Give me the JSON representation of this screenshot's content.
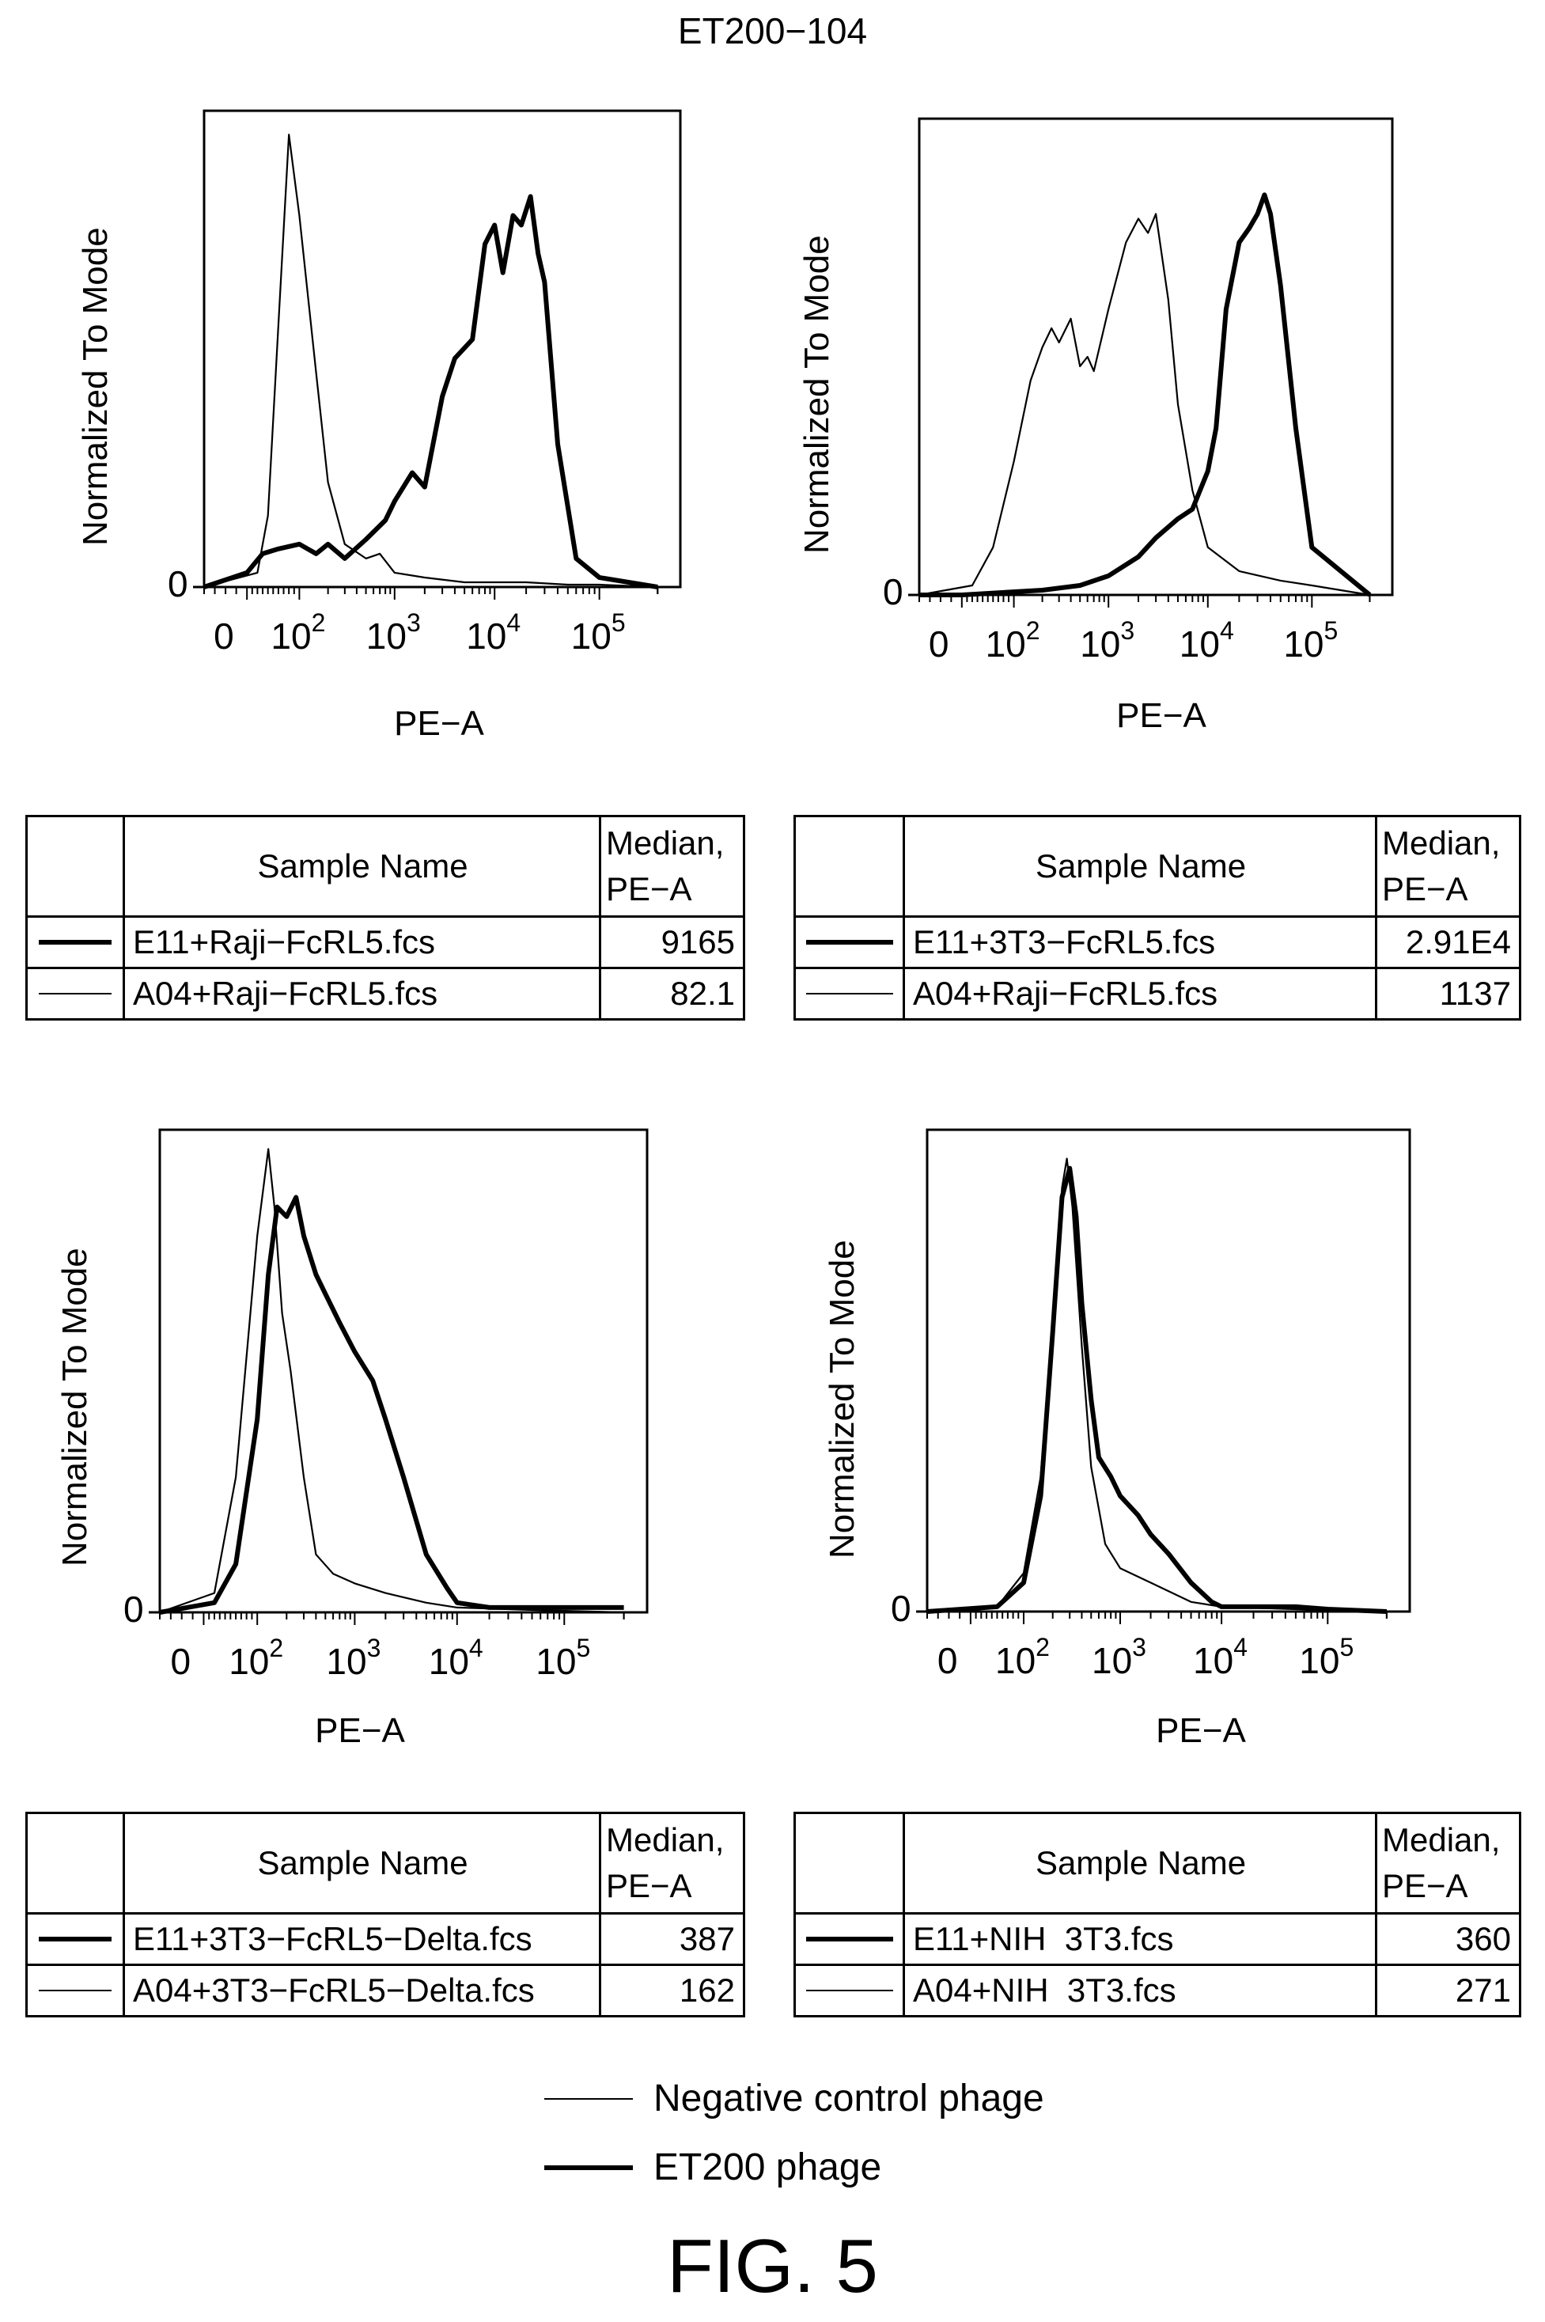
{
  "figure": {
    "title": "ET200−104",
    "caption": "FIG. 5"
  },
  "legend": {
    "thin_label": "Negative control phage",
    "thick_label": "ET200 phage"
  },
  "panels": [
    {
      "ylabel": "Normalized To Mode",
      "xlabel": "PE−A",
      "table": {
        "col_name": "Sample Name",
        "col_median_1": "Median,",
        "col_median_2": "PE−A",
        "rows": [
          {
            "line": "thick",
            "name": "E11+Raji−FcRL5.fcs",
            "median": "9165"
          },
          {
            "line": "thin",
            "name": "A04+Raji−FcRL5.fcs",
            "median": "82.1"
          }
        ]
      }
    },
    {
      "ylabel": "Normalized To Mode",
      "xlabel": "PE−A",
      "table": {
        "col_name": "Sample Name",
        "col_median_1": "Median,",
        "col_median_2": "PE−A",
        "rows": [
          {
            "line": "thick",
            "name": "E11+3T3−FcRL5.fcs",
            "median": "2.91E4"
          },
          {
            "line": "thin",
            "name": "A04+Raji−FcRL5.fcs",
            "median": "1137"
          }
        ]
      }
    },
    {
      "ylabel": "Normalized To Mode",
      "xlabel": "PE−A",
      "table": {
        "col_name": "Sample Name",
        "col_median_1": "Median,",
        "col_median_2": "PE−A",
        "rows": [
          {
            "line": "thick",
            "name": "E11+3T3−FcRL5−Delta.fcs",
            "median": "387"
          },
          {
            "line": "thin",
            "name": "A04+3T3−FcRL5−Delta.fcs",
            "median": "162"
          }
        ]
      }
    },
    {
      "ylabel": "Normalized To Mode",
      "xlabel": "PE−A",
      "table": {
        "col_name": "Sample Name",
        "col_median_1": "Median,",
        "col_median_2": "PE−A",
        "rows": [
          {
            "line": "thick",
            "name": "E11+NIH  3T3.fcs",
            "median": "360"
          },
          {
            "line": "thin",
            "name": "A04+NIH  3T3.fcs",
            "median": "271"
          }
        ]
      }
    }
  ],
  "chart_data": [
    {
      "type": "line",
      "xlabel": "PE−A",
      "ylabel": "Normalized To Mode",
      "x_scale": "biexponential",
      "x_ticks": [
        "0",
        "10^2",
        "10^3",
        "10^4",
        "10^5"
      ],
      "y_ticks": [
        "0"
      ],
      "ylim": [
        0,
        100
      ],
      "series": [
        {
          "name": "A04+Raji−FcRL5.fcs",
          "style": "thin",
          "x": [
            -20,
            20,
            40,
            60,
            80,
            100,
            150,
            200,
            300,
            500,
            700,
            1000,
            2000,
            5000,
            10000,
            20000,
            50000,
            100000,
            200000
          ],
          "y": [
            0,
            3,
            15,
            55,
            95,
            78,
            45,
            22,
            9,
            6,
            7,
            3,
            2,
            1,
            1,
            1,
            0.5,
            0.5,
            0
          ]
        },
        {
          "name": "E11+Raji−FcRL5.fcs",
          "style": "thick",
          "x": [
            -20,
            0,
            30,
            60,
            100,
            150,
            200,
            300,
            500,
            800,
            1000,
            1500,
            2000,
            3000,
            4000,
            6000,
            8000,
            10000,
            12000,
            15000,
            18000,
            22000,
            26000,
            30000,
            40000,
            60000,
            100000,
            200000
          ],
          "y": [
            0,
            3,
            7,
            8,
            9,
            7,
            9,
            6,
            10,
            14,
            18,
            24,
            21,
            40,
            48,
            52,
            72,
            76,
            66,
            78,
            76,
            82,
            70,
            64,
            30,
            6,
            2,
            0
          ]
        }
      ]
    },
    {
      "type": "line",
      "xlabel": "PE−A",
      "ylabel": "Normalized To Mode",
      "x_scale": "biexponential",
      "x_ticks": [
        "0",
        "10^2",
        "10^3",
        "10^4",
        "10^5"
      ],
      "y_ticks": [
        "0"
      ],
      "ylim": [
        0,
        100
      ],
      "series": [
        {
          "name": "A04+Raji−FcRL5.fcs",
          "style": "thin",
          "x": [
            -20,
            20,
            60,
            100,
            150,
            200,
            250,
            300,
            400,
            500,
            600,
            700,
            1000,
            1500,
            2000,
            2500,
            3000,
            4000,
            5000,
            7000,
            10000,
            20000,
            50000,
            100000,
            200000
          ],
          "y": [
            0,
            2,
            10,
            28,
            45,
            52,
            56,
            53,
            58,
            48,
            50,
            47,
            60,
            74,
            79,
            76,
            80,
            62,
            40,
            22,
            10,
            5,
            3,
            2,
            0
          ]
        },
        {
          "name": "E11+3T3−FcRL5.fcs",
          "style": "thick",
          "x": [
            -20,
            0,
            200,
            500,
            1000,
            2000,
            3000,
            5000,
            7000,
            10000,
            12000,
            15000,
            20000,
            25000,
            30000,
            35000,
            40000,
            50000,
            70000,
            100000,
            200000
          ],
          "y": [
            0,
            0,
            1,
            2,
            4,
            8,
            12,
            16,
            18,
            26,
            35,
            60,
            74,
            77,
            80,
            84,
            80,
            65,
            35,
            10,
            0
          ]
        }
      ]
    },
    {
      "type": "line",
      "xlabel": "PE−A",
      "ylabel": "Normalized To Mode",
      "x_scale": "biexponential",
      "x_ticks": [
        "0",
        "10^2",
        "10^3",
        "10^4",
        "10^5"
      ],
      "y_ticks": [
        "0"
      ],
      "ylim": [
        0,
        100
      ],
      "series": [
        {
          "name": "A04+3T3−FcRL5−Delta.fcs",
          "style": "thin",
          "x": [
            -20,
            20,
            60,
            100,
            130,
            150,
            180,
            220,
            300,
            400,
            600,
            1000,
            2000,
            5000,
            10000,
            50000,
            200000
          ],
          "y": [
            0,
            4,
            28,
            78,
            96,
            84,
            62,
            50,
            28,
            12,
            8,
            6,
            4,
            2,
            1,
            0.5,
            0
          ]
        },
        {
          "name": "E11+3T3−FcRL5−Delta.fcs",
          "style": "thick",
          "x": [
            -20,
            20,
            60,
            100,
            130,
            160,
            200,
            250,
            300,
            400,
            500,
            700,
            1000,
            1500,
            2000,
            3000,
            5000,
            8000,
            10000,
            20000,
            50000,
            100000,
            200000
          ],
          "y": [
            0,
            2,
            10,
            40,
            70,
            84,
            82,
            86,
            78,
            70,
            66,
            60,
            54,
            48,
            40,
            28,
            12,
            5,
            2,
            1,
            1,
            1,
            1
          ]
        }
      ]
    },
    {
      "type": "line",
      "xlabel": "PE−A",
      "ylabel": "Normalized To Mode",
      "x_scale": "biexponential",
      "x_ticks": [
        "0",
        "10^2",
        "10^3",
        "10^4",
        "10^5"
      ],
      "y_ticks": [
        "0"
      ],
      "ylim": [
        0,
        100
      ],
      "series": [
        {
          "name": "A04+NIH  3T3.fcs",
          "style": "thin",
          "x": [
            -20,
            50,
            100,
            150,
            200,
            250,
            280,
            320,
            400,
            500,
            700,
            1000,
            2000,
            5000,
            10000,
            50000,
            200000
          ],
          "y": [
            0,
            1,
            8,
            28,
            60,
            88,
            94,
            84,
            55,
            30,
            14,
            9,
            6,
            2,
            1,
            0.5,
            0
          ]
        },
        {
          "name": "E11+NIH  3T3.fcs",
          "style": "thick",
          "x": [
            -20,
            50,
            100,
            150,
            200,
            250,
            300,
            350,
            400,
            500,
            600,
            800,
            1000,
            1500,
            2000,
            3000,
            5000,
            8000,
            10000,
            20000,
            50000,
            100000,
            200000
          ],
          "y": [
            0,
            1,
            6,
            24,
            58,
            86,
            92,
            82,
            64,
            44,
            32,
            28,
            24,
            20,
            16,
            12,
            6,
            2,
            1,
            1,
            1,
            0.5,
            0
          ]
        }
      ]
    }
  ]
}
